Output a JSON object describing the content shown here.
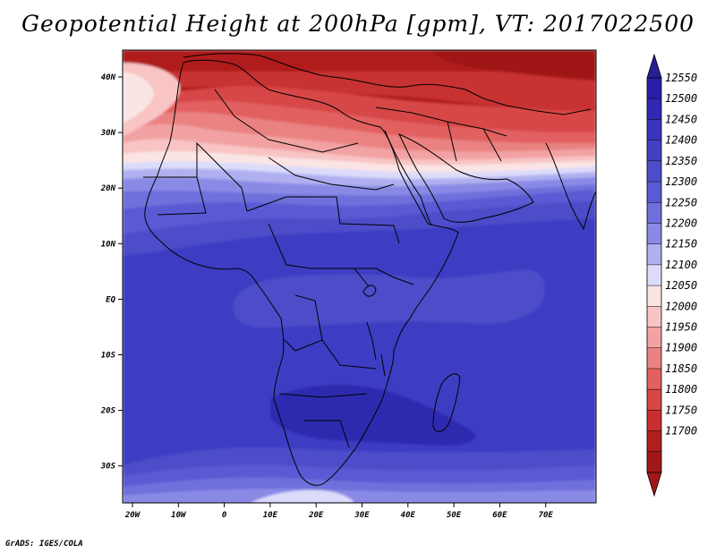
{
  "title": "Geopotential Height at 200hPa [gpm], VT: 2017022500",
  "credit": "GrADS: IGES/COLA",
  "map": {
    "type": "filled-contour",
    "variable": "Geopotential Height at 200hPa",
    "unit": "gpm",
    "lon_range": [
      -25,
      80
    ],
    "lat_range": [
      -37,
      45
    ],
    "lon_ticks": [
      "20W",
      "10W",
      "0",
      "10E",
      "20E",
      "30E",
      "40E",
      "50E",
      "60E",
      "70E"
    ],
    "lat_ticks": [
      "40N",
      "30N",
      "20N",
      "10N",
      "EQ",
      "10S",
      "20S",
      "30S"
    ]
  },
  "colorbar": {
    "levels": [
      12550,
      12500,
      12450,
      12400,
      12350,
      12300,
      12250,
      12200,
      12150,
      12100,
      12050,
      12000,
      11950,
      11900,
      11850,
      11800,
      11750,
      11700
    ],
    "colors": [
      "#2a1ea8",
      "#3128b4",
      "#3a34bc",
      "#4440c4",
      "#4d4dca",
      "#5a5ad4",
      "#7070dc",
      "#8a8ae6",
      "#b0b0f0",
      "#dcdcfa",
      "#fbe4e4",
      "#f8c4c4",
      "#f2a2a2",
      "#ea8282",
      "#e26060",
      "#d84646",
      "#c83030",
      "#b01e1e",
      "#a01818"
    ],
    "top_arrow_color": "#2a1e96",
    "bottom_arrow_color": "#a01818"
  }
}
